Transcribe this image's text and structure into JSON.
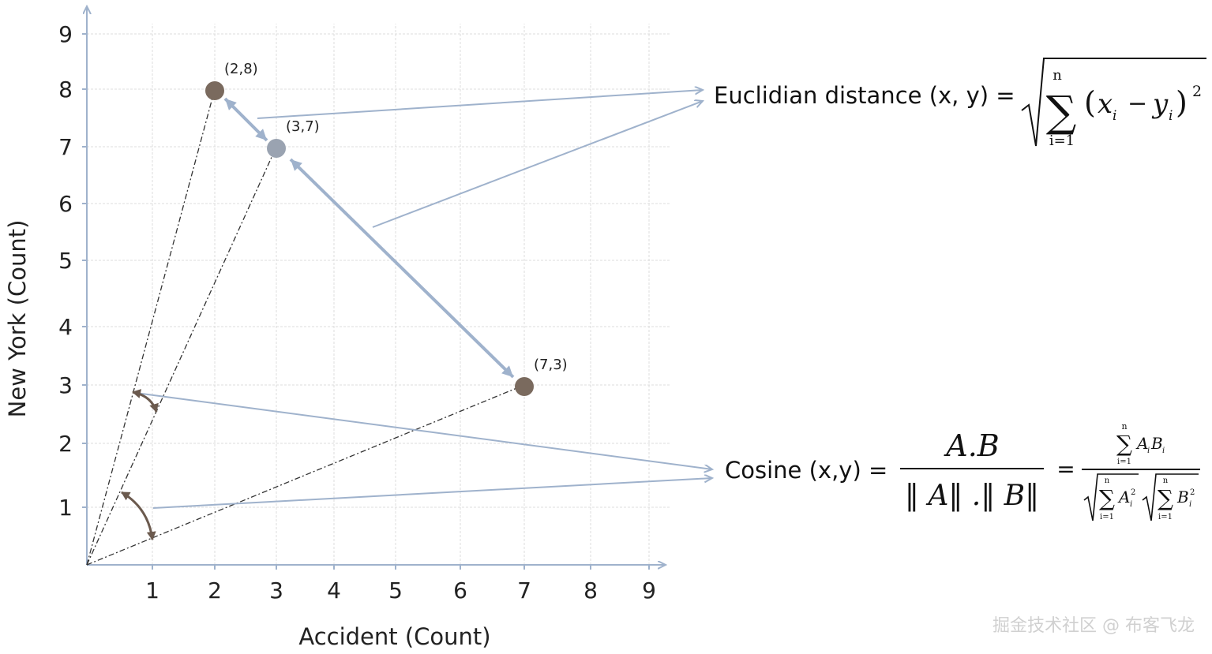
{
  "chart_data": {
    "type": "scatter",
    "xlabel": "Accident (Count)",
    "ylabel": "New York (Count)",
    "xlim": [
      0,
      9
    ],
    "ylim": [
      0,
      9
    ],
    "grid": true,
    "x_ticks": [
      "1",
      "2",
      "3",
      "4",
      "5",
      "6",
      "7",
      "8",
      "9"
    ],
    "y_ticks": [
      "1",
      "2",
      "3",
      "4",
      "5",
      "6",
      "7",
      "8",
      "9"
    ],
    "points": [
      {
        "x": 2,
        "y": 8,
        "label": "(2,8)",
        "color": "#7a6a5e"
      },
      {
        "x": 3,
        "y": 7,
        "label": "(3,7)",
        "color": "#9aa3b1"
      },
      {
        "x": 7,
        "y": 3,
        "label": "(7,3)",
        "color": "#7a6a5e"
      }
    ]
  },
  "formulas": {
    "euclidean": {
      "label": "Euclidian distance (x, y) =",
      "sum_top": "n",
      "sum_bottom": "i=1",
      "exponent": "2"
    },
    "cosine": {
      "label": "Cosine (x,y) =",
      "numerator": "A.B",
      "denominator": "‖ A‖ .‖ B‖",
      "equals": "=",
      "rhs_sum_top": "n",
      "rhs_sum_bottom": "i=1"
    }
  },
  "colors": {
    "arrow": "#9fb2cc",
    "angle_arrow": "#6b5a4e",
    "grid": "#dcdcdc",
    "axis": "#9fb2cc"
  },
  "watermark": "掘金技术社区 @ 布客飞龙"
}
